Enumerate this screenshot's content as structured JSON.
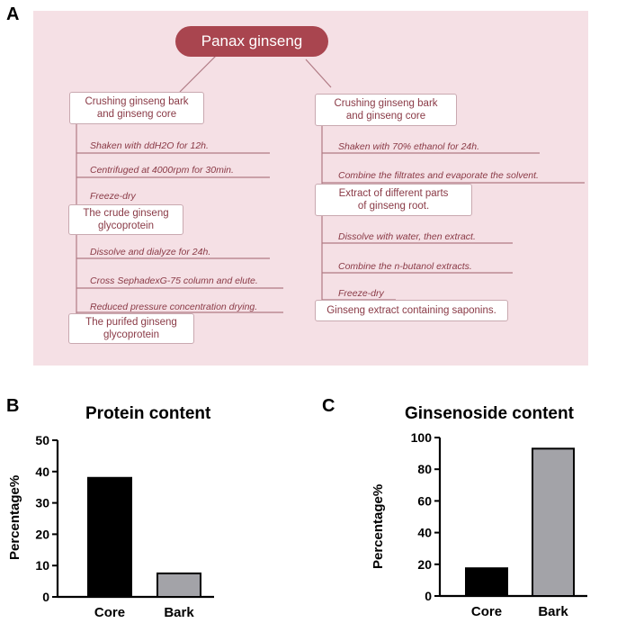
{
  "panels": {
    "a": "A",
    "b": "B",
    "c": "C"
  },
  "diagram": {
    "root": "Panax ginseng",
    "left_branch": {
      "start": "Crushing ginseng bark\nand ginseng core",
      "steps1": [
        "Shaken with ddH2O for 12h.",
        "Centrifuged at 4000rpm for 30min.",
        "Freeze-dry"
      ],
      "mid": "The crude ginseng\nglycoprotein",
      "steps2": [
        "Dissolve and dialyze for 24h.",
        "Cross SephadexG-75 column and elute.",
        "Reduced pressure concentration drying."
      ],
      "end": "The purifed ginseng\nglycoprotein"
    },
    "right_branch": {
      "start": "Crushing ginseng bark\nand ginseng core",
      "steps1": [
        "Shaken with 70% ethanol for 24h.",
        "Combine the filtrates and evaporate the solvent."
      ],
      "mid": "Extract of different parts\nof ginseng root.",
      "steps2": [
        "Dissolve with water, then extract.",
        "Combine the n-butanol extracts.",
        "Freeze-dry"
      ],
      "end": "Ginseng extract containing saponins."
    }
  },
  "chart_data": [
    {
      "type": "bar",
      "title": "Protein content",
      "xlabel": "",
      "ylabel": "Percentage%",
      "categories": [
        "Core",
        "Bark"
      ],
      "values": [
        38,
        7.5
      ],
      "ylim": [
        0,
        50
      ],
      "yticks": [
        0,
        10,
        20,
        30,
        40,
        50
      ],
      "colors": [
        "#000000",
        "#a3a3a8"
      ]
    },
    {
      "type": "bar",
      "title": "Ginsenoside content",
      "xlabel": "",
      "ylabel": "Percentage%",
      "categories": [
        "Core",
        "Bark"
      ],
      "values": [
        17.5,
        93
      ],
      "ylim": [
        0,
        100
      ],
      "yticks": [
        0,
        20,
        40,
        60,
        80,
        100
      ],
      "colors": [
        "#000000",
        "#a3a3a8"
      ]
    }
  ]
}
